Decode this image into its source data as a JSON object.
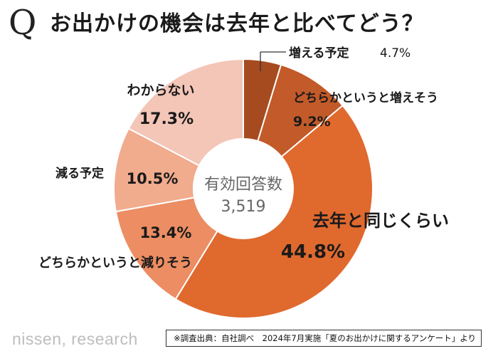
{
  "title": {
    "q_mark": "Q",
    "text": "お出かけの機会は去年と比べてどう？"
  },
  "center": {
    "label": "有効回答数",
    "value": "3,519"
  },
  "chart_data": {
    "type": "pie",
    "style": "donut",
    "title": "お出かけの機会は去年と比べてどう？",
    "total_responses": 3519,
    "slices": [
      {
        "label": "増える予定",
        "value": 4.7,
        "display": "4.7%",
        "color": "#a64b20"
      },
      {
        "label": "どちらかというと増えそう",
        "value": 9.2,
        "display": "9.2%",
        "color": "#c25a29"
      },
      {
        "label": "去年と同じくらい",
        "value": 44.8,
        "display": "44.8%",
        "color": "#e0692e"
      },
      {
        "label": "どちらかというと減りそう",
        "value": 13.4,
        "display": "13.4%",
        "color": "#ec8d63"
      },
      {
        "label": "減る予定",
        "value": 10.5,
        "display": "10.5%",
        "color": "#f1ab8d"
      },
      {
        "label": "わからない",
        "value": 17.3,
        "display": "17.3%",
        "color": "#f3c6b8"
      }
    ]
  },
  "footer": {
    "brand": "nissen, research",
    "source": "※調査出典：自社調べ　2024年7月実施「夏のお出かけに関するアンケート」より"
  }
}
